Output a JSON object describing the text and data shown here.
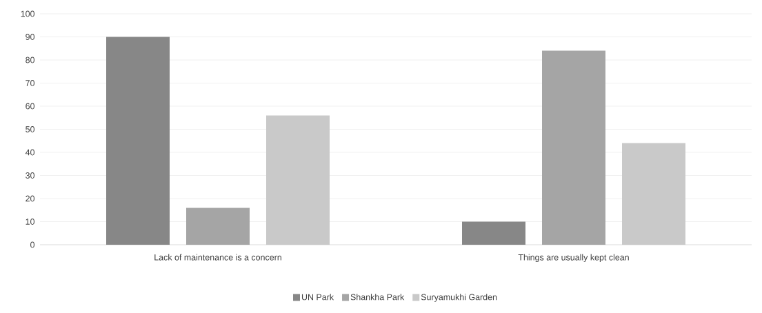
{
  "chart_data": {
    "type": "bar",
    "categories": [
      "Lack of maintenance is a concern",
      "Things are usually kept clean"
    ],
    "series": [
      {
        "name": "UN Park",
        "color": "#878787",
        "values": [
          90,
          10
        ]
      },
      {
        "name": "Shankha Park",
        "color": "#a5a5a5",
        "values": [
          16,
          84
        ]
      },
      {
        "name": "Suryamukhi Garden",
        "color": "#c9c9c9",
        "values": [
          56,
          44
        ]
      }
    ],
    "ylim": [
      0,
      100
    ],
    "yticks": [
      0,
      10,
      20,
      30,
      40,
      50,
      60,
      70,
      80,
      90,
      100
    ],
    "grid": "y",
    "legend": "bottom"
  }
}
